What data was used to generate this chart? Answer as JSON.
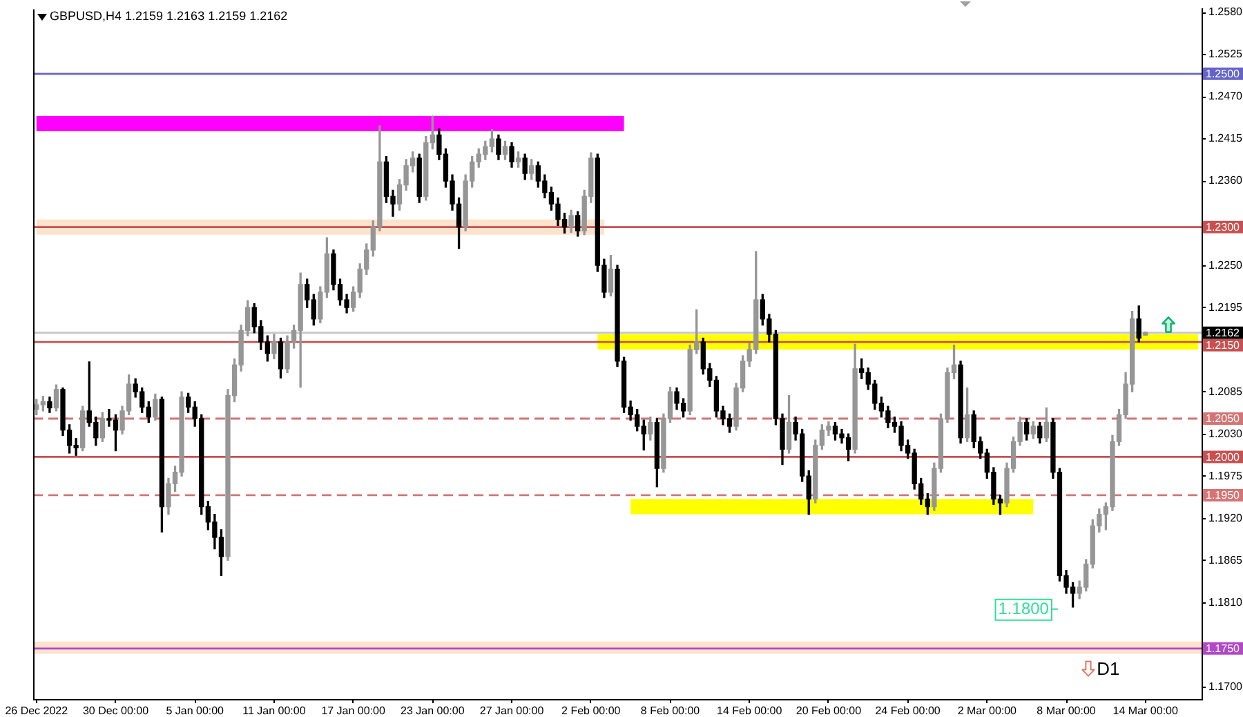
{
  "chart_data": {
    "type": "candlestick",
    "title": "GBPUSD,H4 1.2159 1.2163 1.2159 1.2162",
    "categories": [
      "26 Dec 2022",
      null,
      null,
      null,
      null,
      null,
      null,
      null,
      null,
      null,
      null,
      null,
      "30 Dec 00:00",
      null,
      null,
      null,
      null,
      null,
      null,
      null,
      null,
      null,
      null,
      null,
      "5 Jan 00:00",
      null,
      null,
      null,
      null,
      null,
      null,
      null,
      null,
      null,
      null,
      null,
      "11 Jan 00:00",
      null,
      null,
      null,
      null,
      null,
      null,
      null,
      null,
      null,
      null,
      null,
      "17 Jan 00:00",
      null,
      null,
      null,
      null,
      null,
      null,
      null,
      null,
      null,
      null,
      null,
      "23 Jan 00:00",
      null,
      null,
      null,
      null,
      null,
      null,
      null,
      null,
      null,
      null,
      null,
      "27 Jan 00:00",
      null,
      null,
      null,
      null,
      null,
      null,
      null,
      null,
      null,
      null,
      null,
      "2 Feb 00:00",
      null,
      null,
      null,
      null,
      null,
      null,
      null,
      null,
      null,
      null,
      null,
      "8 Feb 00:00",
      null,
      null,
      null,
      null,
      null,
      null,
      null,
      null,
      null,
      null,
      null,
      "14 Feb 00:00",
      null,
      null,
      null,
      null,
      null,
      null,
      null,
      null,
      null,
      null,
      null,
      "20 Feb 00:00",
      null,
      null,
      null,
      null,
      null,
      null,
      null,
      null,
      null,
      null,
      null,
      "24 Feb 00:00",
      null,
      null,
      null,
      null,
      null,
      null,
      null,
      null,
      null,
      null,
      null,
      "2 Mar 00:00",
      null,
      null,
      null,
      null,
      null,
      null,
      null,
      null,
      null,
      null,
      null,
      "8 Mar 00:00",
      null,
      null,
      null,
      null,
      null,
      null,
      null,
      null,
      null,
      null,
      null,
      "14 Mar 00:00",
      null,
      null,
      null,
      null,
      null,
      null,
      null,
      null
    ],
    "ohlc": [
      [
        1.2062,
        1.2075,
        1.2055,
        1.2068
      ],
      [
        1.2068,
        1.2079,
        1.206,
        1.2072
      ],
      [
        1.2072,
        1.2078,
        1.2058,
        1.2064
      ],
      [
        1.2064,
        1.2094,
        1.206,
        1.2088
      ],
      [
        1.2088,
        1.209,
        1.2028,
        1.2035
      ],
      [
        1.2035,
        1.2042,
        1.2005,
        1.2015
      ],
      [
        1.2015,
        1.2024,
        1.2002,
        1.2012
      ],
      [
        1.2012,
        1.2066,
        1.2008,
        1.206
      ],
      [
        1.206,
        1.2124,
        1.204,
        1.2045
      ],
      [
        1.2045,
        1.2052,
        1.2015,
        1.2025
      ],
      [
        1.2025,
        1.2058,
        1.202,
        1.205
      ],
      [
        1.205,
        1.2062,
        1.204,
        1.2048
      ],
      [
        1.2048,
        1.2055,
        1.2008,
        1.2035
      ],
      [
        1.2035,
        1.2066,
        1.203,
        1.206
      ],
      [
        1.206,
        1.2107,
        1.2055,
        1.2095
      ],
      [
        1.2095,
        1.2102,
        1.2078,
        1.2085
      ],
      [
        1.2085,
        1.209,
        1.2058,
        1.2065
      ],
      [
        1.2065,
        1.2072,
        1.2045,
        1.2052
      ],
      [
        1.2052,
        1.2082,
        1.2048,
        1.2075
      ],
      [
        1.2075,
        1.2078,
        1.1902,
        1.1935
      ],
      [
        1.1935,
        1.1972,
        1.1925,
        1.1965
      ],
      [
        1.1965,
        1.1988,
        1.1955,
        1.198
      ],
      [
        1.198,
        1.2085,
        1.1975,
        1.2078
      ],
      [
        1.2078,
        1.2083,
        1.2058,
        1.2065
      ],
      [
        1.2065,
        1.2072,
        1.204,
        1.205
      ],
      [
        1.205,
        1.2055,
        1.1925,
        1.1935
      ],
      [
        1.1935,
        1.1942,
        1.1905,
        1.1915
      ],
      [
        1.1915,
        1.1925,
        1.188,
        1.1895
      ],
      [
        1.1895,
        1.1905,
        1.1845,
        1.187
      ],
      [
        1.187,
        1.2088,
        1.1865,
        1.208
      ],
      [
        1.208,
        1.2128,
        1.2072,
        1.212
      ],
      [
        1.212,
        1.2172,
        1.2112,
        1.2165
      ],
      [
        1.2165,
        1.2204,
        1.2158,
        1.2195
      ],
      [
        1.2195,
        1.22,
        1.2162,
        1.217
      ],
      [
        1.217,
        1.2178,
        1.214,
        1.215
      ],
      [
        1.215,
        1.2158,
        1.2125,
        1.2135
      ],
      [
        1.2135,
        1.216,
        1.2128,
        1.215
      ],
      [
        1.215,
        1.2155,
        1.2103,
        1.2115
      ],
      [
        1.2115,
        1.2158,
        1.211,
        1.215
      ],
      [
        1.215,
        1.2172,
        1.2142,
        1.2165
      ],
      [
        1.2165,
        1.224,
        1.2091,
        1.2225
      ],
      [
        1.2225,
        1.2232,
        1.2195,
        1.2205
      ],
      [
        1.2205,
        1.2212,
        1.2172,
        1.218
      ],
      [
        1.218,
        1.2222,
        1.2175,
        1.2215
      ],
      [
        1.2215,
        1.2286,
        1.2208,
        1.2265
      ],
      [
        1.2265,
        1.227,
        1.2218,
        1.2225
      ],
      [
        1.2225,
        1.2232,
        1.2198,
        1.2205
      ],
      [
        1.2205,
        1.2212,
        1.2188,
        1.2195
      ],
      [
        1.2195,
        1.2222,
        1.219,
        1.2215
      ],
      [
        1.2215,
        1.2252,
        1.2208,
        1.2245
      ],
      [
        1.2245,
        1.2278,
        1.2238,
        1.227
      ],
      [
        1.227,
        1.2308,
        1.2262,
        1.23
      ],
      [
        1.23,
        1.2432,
        1.2295,
        1.2385
      ],
      [
        1.2385,
        1.2392,
        1.2332,
        1.234
      ],
      [
        1.234,
        1.2348,
        1.2314,
        1.233
      ],
      [
        1.233,
        1.2362,
        1.2322,
        1.2355
      ],
      [
        1.2355,
        1.2388,
        1.2348,
        1.238
      ],
      [
        1.238,
        1.2398,
        1.2372,
        1.239
      ],
      [
        1.239,
        1.2395,
        1.2332,
        1.234
      ],
      [
        1.234,
        1.2418,
        1.2335,
        1.241
      ],
      [
        1.241,
        1.2445,
        1.2402,
        1.242
      ],
      [
        1.242,
        1.2428,
        1.2388,
        1.2395
      ],
      [
        1.2395,
        1.2402,
        1.2352,
        1.236
      ],
      [
        1.236,
        1.2368,
        1.2322,
        1.233
      ],
      [
        1.233,
        1.2338,
        1.2272,
        1.23
      ],
      [
        1.23,
        1.2368,
        1.2295,
        1.236
      ],
      [
        1.236,
        1.2392,
        1.2352,
        1.2385
      ],
      [
        1.2385,
        1.2402,
        1.2378,
        1.2395
      ],
      [
        1.2395,
        1.2412,
        1.2388,
        1.2405
      ],
      [
        1.2405,
        1.2427,
        1.2398,
        1.2415
      ],
      [
        1.2415,
        1.242,
        1.2388,
        1.2395
      ],
      [
        1.2395,
        1.2412,
        1.2388,
        1.2405
      ],
      [
        1.2405,
        1.241,
        1.2378,
        1.2385
      ],
      [
        1.2385,
        1.2398,
        1.2378,
        1.239
      ],
      [
        1.239,
        1.2395,
        1.2362,
        1.237
      ],
      [
        1.237,
        1.2388,
        1.2362,
        1.238
      ],
      [
        1.238,
        1.2385,
        1.2352,
        1.236
      ],
      [
        1.236,
        1.2368,
        1.2338,
        1.2345
      ],
      [
        1.2345,
        1.2352,
        1.2322,
        1.233
      ],
      [
        1.233,
        1.2338,
        1.2302,
        1.231
      ],
      [
        1.231,
        1.2318,
        1.2292,
        1.23
      ],
      [
        1.23,
        1.2322,
        1.2293,
        1.2315
      ],
      [
        1.2315,
        1.232,
        1.2288,
        1.2295
      ],
      [
        1.2295,
        1.2348,
        1.229,
        1.234
      ],
      [
        1.234,
        1.2397,
        1.2332,
        1.239
      ],
      [
        1.239,
        1.2395,
        1.2242,
        1.225
      ],
      [
        1.225,
        1.2258,
        1.2208,
        1.2215
      ],
      [
        1.2215,
        1.2263,
        1.221,
        1.2245
      ],
      [
        1.2245,
        1.225,
        1.2118,
        1.2125
      ],
      [
        1.2125,
        1.213,
        1.2058,
        1.2065
      ],
      [
        1.2065,
        1.2073,
        1.2048,
        1.2055
      ],
      [
        1.2055,
        1.2062,
        1.2034,
        1.204
      ],
      [
        1.204,
        1.2048,
        1.2009,
        1.203
      ],
      [
        1.203,
        1.2052,
        1.2022,
        1.2045
      ],
      [
        1.2045,
        1.205,
        1.1961,
        1.1985
      ],
      [
        1.1985,
        1.2056,
        1.198,
        1.205
      ],
      [
        1.205,
        1.2091,
        1.2045,
        1.2085
      ],
      [
        1.2085,
        1.209,
        1.2062,
        1.207
      ],
      [
        1.207,
        1.2076,
        1.2052,
        1.206
      ],
      [
        1.206,
        1.2146,
        1.2055,
        1.214
      ],
      [
        1.214,
        1.2192,
        1.2135,
        1.215
      ],
      [
        1.215,
        1.2155,
        1.2108,
        1.2115
      ],
      [
        1.2115,
        1.2122,
        1.2092,
        1.21
      ],
      [
        1.21,
        1.2105,
        1.2052,
        1.206
      ],
      [
        1.206,
        1.2066,
        1.2042,
        1.205
      ],
      [
        1.205,
        1.2056,
        1.2032,
        1.204
      ],
      [
        1.204,
        1.2096,
        1.2035,
        1.209
      ],
      [
        1.209,
        1.2132,
        1.2085,
        1.2125
      ],
      [
        1.2125,
        1.2148,
        1.2118,
        1.214
      ],
      [
        1.214,
        1.2268,
        1.2135,
        1.2205
      ],
      [
        1.2205,
        1.2212,
        1.2172,
        1.218
      ],
      [
        1.218,
        1.2186,
        1.215,
        1.216
      ],
      [
        1.216,
        1.2165,
        1.2042,
        1.205
      ],
      [
        1.205,
        1.2056,
        1.199,
        1.201
      ],
      [
        1.201,
        1.208,
        1.2005,
        1.2045
      ],
      [
        1.2045,
        1.2052,
        1.2022,
        1.203
      ],
      [
        1.203,
        1.2036,
        1.1968,
        1.1975
      ],
      [
        1.1975,
        1.1982,
        1.1925,
        1.1945
      ],
      [
        1.1945,
        1.2022,
        1.194,
        1.2015
      ],
      [
        1.2015,
        1.2042,
        1.201,
        1.2035
      ],
      [
        1.2035,
        1.2046,
        1.2028,
        1.204
      ],
      [
        1.204,
        1.2045,
        1.2022,
        1.203
      ],
      [
        1.203,
        1.2036,
        1.2018,
        1.2025
      ],
      [
        1.2025,
        1.203,
        1.1995,
        1.201
      ],
      [
        1.201,
        1.2147,
        1.2005,
        1.2115
      ],
      [
        1.2115,
        1.2128,
        1.2102,
        1.211
      ],
      [
        1.211,
        1.2116,
        1.2088,
        1.2095
      ],
      [
        1.2095,
        1.21,
        1.2062,
        1.207
      ],
      [
        1.207,
        1.2078,
        1.2052,
        1.206
      ],
      [
        1.206,
        1.2066,
        1.2038,
        1.2045
      ],
      [
        1.2045,
        1.2052,
        1.2032,
        1.204
      ],
      [
        1.204,
        1.2046,
        1.2008,
        1.2015
      ],
      [
        1.2015,
        1.2022,
        1.1998,
        1.2005
      ],
      [
        1.2005,
        1.201,
        1.1958,
        1.1965
      ],
      [
        1.1965,
        1.1972,
        1.1938,
        1.1945
      ],
      [
        1.1945,
        1.1952,
        1.1925,
        1.1935
      ],
      [
        1.1935,
        1.1992,
        1.193,
        1.1985
      ],
      [
        1.1985,
        1.2056,
        1.198,
        1.205
      ],
      [
        1.205,
        1.2116,
        1.2045,
        1.211
      ],
      [
        1.211,
        1.2146,
        1.2102,
        1.212
      ],
      [
        1.212,
        1.2125,
        1.2018,
        1.2025
      ],
      [
        1.2025,
        1.209,
        1.202,
        1.2055
      ],
      [
        1.2055,
        1.206,
        1.2012,
        1.202
      ],
      [
        1.202,
        1.2026,
        1.1998,
        1.2005
      ],
      [
        1.2005,
        1.201,
        1.1972,
        1.198
      ],
      [
        1.198,
        1.1986,
        1.1938,
        1.1945
      ],
      [
        1.1945,
        1.195,
        1.1925,
        1.194
      ],
      [
        1.194,
        1.1992,
        1.1935,
        1.1985
      ],
      [
        1.1985,
        1.2026,
        1.198,
        1.202
      ],
      [
        1.202,
        1.2052,
        1.2015,
        1.2045
      ],
      [
        1.2045,
        1.205,
        1.2022,
        1.203
      ],
      [
        1.203,
        1.2046,
        1.2024,
        1.204
      ],
      [
        1.204,
        1.2045,
        1.2018,
        1.2025
      ],
      [
        1.2025,
        1.2064,
        1.202,
        1.2045
      ],
      [
        1.2045,
        1.205,
        1.1972,
        1.198
      ],
      [
        1.198,
        1.1985,
        1.1838,
        1.1845
      ],
      [
        1.1845,
        1.1852,
        1.1822,
        1.183
      ],
      [
        1.183,
        1.1836,
        1.1804,
        1.1822
      ],
      [
        1.1822,
        1.1838,
        1.1815,
        1.183
      ],
      [
        1.183,
        1.1866,
        1.1825,
        1.186
      ],
      [
        1.186,
        1.1918,
        1.1855,
        1.191
      ],
      [
        1.191,
        1.1932,
        1.1902,
        1.1925
      ],
      [
        1.1925,
        1.194,
        1.1905,
        1.1935
      ],
      [
        1.1935,
        1.2028,
        1.193,
        1.202
      ],
      [
        1.202,
        1.2062,
        1.2015,
        1.2055
      ],
      [
        1.2055,
        1.211,
        1.205,
        1.2095
      ],
      [
        1.2095,
        1.219,
        1.2085,
        1.218
      ],
      [
        1.218,
        1.2197,
        1.215,
        1.2155
      ],
      [
        1.2159,
        1.2163,
        1.2159,
        1.2162
      ],
      null,
      null,
      null,
      null,
      null,
      null,
      null,
      null
    ],
    "colors": [
      "#969696",
      "#969696",
      "#000000",
      "#969696",
      "#000000",
      "#000000",
      "#000000",
      "#969696",
      "#000000",
      "#000000",
      "#969696",
      "#000000",
      "#000000",
      "#969696",
      "#969696",
      "#000000",
      "#000000",
      "#000000",
      "#969696",
      "#000000",
      "#969696",
      "#969696",
      "#969696",
      "#000000",
      "#000000",
      "#000000",
      "#000000",
      "#000000",
      "#000000",
      "#969696",
      "#969696",
      "#969696",
      "#969696",
      "#000000",
      "#000000",
      "#000000",
      "#969696",
      "#000000",
      "#969696",
      "#969696",
      "#969696",
      "#000000",
      "#000000",
      "#969696",
      "#969696",
      "#000000",
      "#000000",
      "#000000",
      "#969696",
      "#969696",
      "#969696",
      "#969696",
      "#969696",
      "#000000",
      "#000000",
      "#969696",
      "#969696",
      "#969696",
      "#000000",
      "#969696",
      "#969696",
      "#000000",
      "#000000",
      "#000000",
      "#000000",
      "#969696",
      "#969696",
      "#969696",
      "#969696",
      "#969696",
      "#000000",
      "#969696",
      "#000000",
      "#969696",
      "#000000",
      "#969696",
      "#000000",
      "#000000",
      "#000000",
      "#000000",
      "#000000",
      "#969696",
      "#000000",
      "#969696",
      "#969696",
      "#000000",
      "#000000",
      "#969696",
      "#000000",
      "#000000",
      "#000000",
      "#000000",
      "#000000",
      "#969696",
      "#000000",
      "#969696",
      "#969696",
      "#000000",
      "#000000",
      "#969696",
      "#969696",
      "#000000",
      "#000000",
      "#000000",
      "#000000",
      "#000000",
      "#969696",
      "#969696",
      "#969696",
      "#969696",
      "#000000",
      "#000000",
      "#000000",
      "#000000",
      "#969696",
      "#000000",
      "#000000",
      "#000000",
      "#969696",
      "#969696",
      "#969696",
      "#000000",
      "#000000",
      "#000000",
      "#969696",
      "#000000",
      "#000000",
      "#000000",
      "#000000",
      "#000000",
      "#000000",
      "#000000",
      "#000000",
      "#000000",
      "#000000",
      "#000000",
      "#969696",
      "#969696",
      "#969696",
      "#969696",
      "#000000",
      "#969696",
      "#000000",
      "#000000",
      "#000000",
      "#000000",
      "#000000",
      "#969696",
      "#969696",
      "#969696",
      "#000000",
      "#969696",
      "#000000",
      "#969696",
      "#000000",
      "#000000",
      "#000000",
      "#000000",
      "#969696",
      "#969696",
      "#969696",
      "#969696",
      "#969696",
      "#969696",
      "#969696",
      "#969696",
      "#969696",
      "#000000",
      "#969696",
      null,
      null,
      null,
      null,
      null,
      null,
      null,
      null
    ],
    "ylim": [
      1.1684,
      1.2584
    ],
    "yticks": [
      {
        "value": 1.258,
        "label": "1.2580"
      },
      1.2525,
      {
        "value": 1.247,
        "label": "1.2470"
      },
      1.2415,
      {
        "value": 1.236,
        "label": "1.2360"
      },
      {
        "value": 1.2305,
        "label": null
      },
      {
        "value": 1.225,
        "label": "1.2250"
      },
      1.2195,
      {
        "value": 1.214,
        "label": null
      },
      1.2085,
      {
        "value": 1.203,
        "label": "1.2030"
      },
      1.1975,
      {
        "value": 1.192,
        "label": "1.1920"
      },
      1.1865,
      {
        "value": 1.181,
        "label": "1.1810"
      },
      {
        "value": 1.1755,
        "label": null
      },
      {
        "value": 1.17,
        "label": "1.1700"
      }
    ],
    "series": [
      {
        "type": "line",
        "color": "#ff00ff",
        "values": [
          1.2435,
          1.2435,
          1.2435,
          1.2435,
          1.2435,
          1.2435,
          1.2435,
          1.2435,
          1.2435,
          1.2435,
          1.2435,
          1.2435,
          1.2435,
          1.2435,
          1.2435,
          1.2435,
          1.2435,
          1.2435,
          1.2435,
          1.2435,
          1.2435,
          1.2435,
          1.2435,
          1.2435,
          1.2435,
          1.2435,
          1.2435,
          1.2435,
          1.2435,
          1.2435,
          1.2435,
          1.2435,
          1.2435,
          1.2435,
          1.2435,
          1.2435,
          1.2435,
          1.2435,
          1.2435,
          1.2435,
          1.2435,
          1.2435,
          1.2435,
          1.2435,
          1.2435,
          1.2435,
          1.2435,
          1.2435,
          1.2435,
          1.2435,
          1.2435,
          1.2435,
          1.2435,
          1.2435,
          1.2435,
          1.2435,
          1.2435,
          1.2435,
          1.2435,
          1.2435,
          1.2435,
          1.2435,
          1.2435,
          1.2435,
          1.2435,
          1.2435,
          1.2435,
          1.2435,
          1.2435,
          1.2435,
          1.2435,
          1.2435,
          1.2435,
          1.2435,
          1.2435,
          1.2435,
          1.2435,
          1.2435,
          1.2435,
          1.2435,
          1.2435,
          1.2435,
          1.2435,
          1.2435,
          1.2435,
          1.2435,
          1.2435,
          1.2435,
          1.2435,
          1.2435,
          null,
          null,
          null,
          null,
          null,
          null,
          null,
          null,
          null,
          null,
          null,
          null,
          null,
          null,
          null,
          null,
          null,
          null,
          null,
          null,
          null,
          null,
          null,
          null,
          null,
          null,
          null,
          null,
          null,
          null,
          null,
          null,
          null,
          null,
          null,
          null,
          null,
          null,
          null,
          null,
          null,
          null,
          null,
          null,
          null,
          null,
          null,
          null,
          null,
          null,
          null,
          null,
          null,
          null,
          null,
          null,
          null,
          null,
          null,
          null,
          null,
          null,
          null,
          null,
          null,
          null,
          null,
          null,
          null,
          null,
          null,
          null,
          null,
          null,
          null,
          null,
          null,
          null,
          null,
          null,
          null,
          null,
          null,
          null,
          null,
          null,
          null
        ]
      },
      {
        "type": "line",
        "color": "#fde2cc",
        "values": [
          1.23,
          1.23,
          1.23,
          1.23,
          1.23,
          1.23,
          1.23,
          1.23,
          1.23,
          1.23,
          1.23,
          1.23,
          1.23,
          1.23,
          1.23,
          1.23,
          1.23,
          1.23,
          1.23,
          1.23,
          1.23,
          1.23,
          1.23,
          1.23,
          1.23,
          1.23,
          1.23,
          1.23,
          1.23,
          1.23,
          1.23,
          1.23,
          1.23,
          1.23,
          1.23,
          1.23,
          1.23,
          1.23,
          1.23,
          1.23,
          1.23,
          1.23,
          1.23,
          1.23,
          1.23,
          1.23,
          1.23,
          1.23,
          1.23,
          1.23,
          1.23,
          1.23,
          1.23,
          1.23,
          1.23,
          1.23,
          1.23,
          1.23,
          1.23,
          1.23,
          1.23,
          1.23,
          1.23,
          1.23,
          1.23,
          1.23,
          1.23,
          1.23,
          1.23,
          1.23,
          1.23,
          1.23,
          1.23,
          1.23,
          1.23,
          1.23,
          1.23,
          1.23,
          1.23,
          1.23,
          1.23,
          1.23,
          1.23,
          1.23,
          1.23,
          1.23,
          1.23,
          null,
          null,
          null,
          null,
          null,
          null,
          null,
          null,
          null,
          null,
          null,
          null,
          null,
          null,
          null,
          null,
          null,
          null,
          null,
          null,
          null,
          null,
          null,
          null,
          null,
          null,
          null,
          null,
          null,
          null,
          null,
          null,
          null,
          null,
          null,
          null,
          null,
          null,
          null,
          null,
          null,
          null,
          null,
          null,
          null,
          null,
          null,
          null,
          null,
          null,
          null,
          null,
          null,
          null,
          null,
          null,
          null,
          null,
          null,
          null,
          null,
          null,
          null,
          null,
          null,
          null,
          null,
          null,
          null,
          null,
          null,
          null,
          null,
          null,
          null,
          null,
          null,
          null,
          null,
          null,
          null,
          null,
          null,
          null,
          null,
          null,
          null,
          null,
          null,
          null
        ]
      },
      {
        "type": "line",
        "color": "#ffff00",
        "values": [
          null,
          null,
          null,
          null,
          null,
          null,
          null,
          null,
          null,
          null,
          null,
          null,
          null,
          null,
          null,
          null,
          null,
          null,
          null,
          null,
          null,
          null,
          null,
          null,
          null,
          null,
          null,
          null,
          null,
          null,
          null,
          null,
          null,
          null,
          null,
          null,
          null,
          null,
          null,
          null,
          null,
          null,
          null,
          null,
          null,
          null,
          null,
          null,
          null,
          null,
          null,
          null,
          null,
          null,
          null,
          null,
          null,
          null,
          null,
          null,
          null,
          null,
          null,
          null,
          null,
          null,
          null,
          null,
          null,
          null,
          null,
          null,
          null,
          null,
          null,
          null,
          null,
          null,
          null,
          null,
          null,
          null,
          null,
          null,
          null,
          1.215,
          1.215,
          1.215,
          1.215,
          1.215,
          1.215,
          1.215,
          1.215,
          1.215,
          1.215,
          1.215,
          1.215,
          1.215,
          1.215,
          1.215,
          1.215,
          1.215,
          1.215,
          1.215,
          1.215,
          1.215,
          1.215,
          1.215,
          1.215,
          1.215,
          1.215,
          1.215,
          1.215,
          1.215,
          1.215,
          1.215,
          1.215,
          1.215,
          1.215,
          1.215,
          1.215,
          1.215,
          1.215,
          1.215,
          1.215,
          1.215,
          1.215,
          1.215,
          1.215,
          1.215,
          1.215,
          1.215,
          1.215,
          1.215,
          1.215,
          1.215,
          1.215,
          1.215,
          1.215,
          1.215,
          1.215,
          1.215,
          1.215,
          1.215,
          1.215,
          1.215,
          1.215,
          1.215,
          1.215,
          1.215,
          1.215,
          1.215,
          1.215,
          1.215,
          1.215,
          1.215,
          1.215,
          1.215,
          1.215,
          1.215,
          1.215,
          1.215,
          1.215,
          1.215,
          1.215,
          1.215,
          1.215,
          1.215,
          1.215,
          1.215,
          1.215,
          1.215,
          1.215,
          1.215,
          1.215,
          1.215,
          1.215
        ]
      },
      {
        "type": "line",
        "color": "#ffff00",
        "values": [
          null,
          null,
          null,
          null,
          null,
          null,
          null,
          null,
          null,
          null,
          null,
          null,
          null,
          null,
          null,
          null,
          null,
          null,
          null,
          null,
          null,
          null,
          null,
          null,
          null,
          null,
          null,
          null,
          null,
          null,
          null,
          null,
          null,
          null,
          null,
          null,
          null,
          null,
          null,
          null,
          null,
          null,
          null,
          null,
          null,
          null,
          null,
          null,
          null,
          null,
          null,
          null,
          null,
          null,
          null,
          null,
          null,
          null,
          null,
          null,
          null,
          null,
          null,
          null,
          null,
          null,
          null,
          null,
          null,
          null,
          null,
          null,
          null,
          null,
          null,
          null,
          null,
          null,
          null,
          null,
          null,
          null,
          null,
          null,
          null,
          null,
          null,
          null,
          null,
          null,
          1.1935,
          1.1935,
          1.1935,
          1.1935,
          1.1935,
          1.1935,
          1.1935,
          1.1935,
          1.1935,
          1.1935,
          1.1935,
          1.1935,
          1.1935,
          1.1935,
          1.1935,
          1.1935,
          1.1935,
          1.1935,
          1.1935,
          1.1935,
          1.1935,
          1.1935,
          1.1935,
          1.1935,
          1.1935,
          1.1935,
          1.1935,
          1.1935,
          1.1935,
          1.1935,
          1.1935,
          1.1935,
          1.1935,
          1.1935,
          1.1935,
          1.1935,
          1.1935,
          1.1935,
          1.1935,
          1.1935,
          1.1935,
          1.1935,
          1.1935,
          1.1935,
          1.1935,
          1.1935,
          1.1935,
          1.1935,
          1.1935,
          1.1935,
          1.1935,
          1.1935,
          1.1935,
          1.1935,
          1.1935,
          1.1935,
          1.1935,
          1.1935,
          1.1935,
          1.1935,
          1.1935,
          1.1935,
          null,
          null,
          null,
          null,
          null,
          null,
          null,
          null,
          null,
          null,
          null,
          null,
          null,
          null,
          null,
          null,
          null,
          null,
          null,
          null,
          null,
          null,
          null,
          null,
          null
        ]
      }
    ],
    "ref_lines": [
      {
        "axis": "y",
        "value": 1.25,
        "label": "1.2500",
        "color": "#6464c8"
      },
      {
        "axis": "y",
        "value": 1.23,
        "label": "1.2300",
        "color": "#c85050"
      },
      {
        "axis": "y",
        "value": 1.2162,
        "label": "1.2162",
        "color": "#c8c8c8"
      },
      {
        "axis": "y",
        "value": 1.215,
        "label": "1.2150",
        "color": "#c85050"
      },
      {
        "axis": "y",
        "value": 1.205,
        "label": "1.2050",
        "color": "#d47474",
        "line_style": "dashed"
      },
      {
        "axis": "y",
        "value": 1.2,
        "label": "1.2000",
        "color": "#c85050"
      },
      {
        "axis": "y",
        "value": 1.195,
        "label": "1.1950",
        "color": "#d47474",
        "line_style": "dashed"
      },
      {
        "axis": "y",
        "value": 1.175,
        "label": "1.1750",
        "color": "#b048c8"
      }
    ],
    "bands": [
      {
        "axis": "y",
        "from": 1.1743,
        "to": 1.1759,
        "color": "#fde2cc"
      }
    ],
    "annotations": [
      "1.1800",
      "D1"
    ]
  }
}
